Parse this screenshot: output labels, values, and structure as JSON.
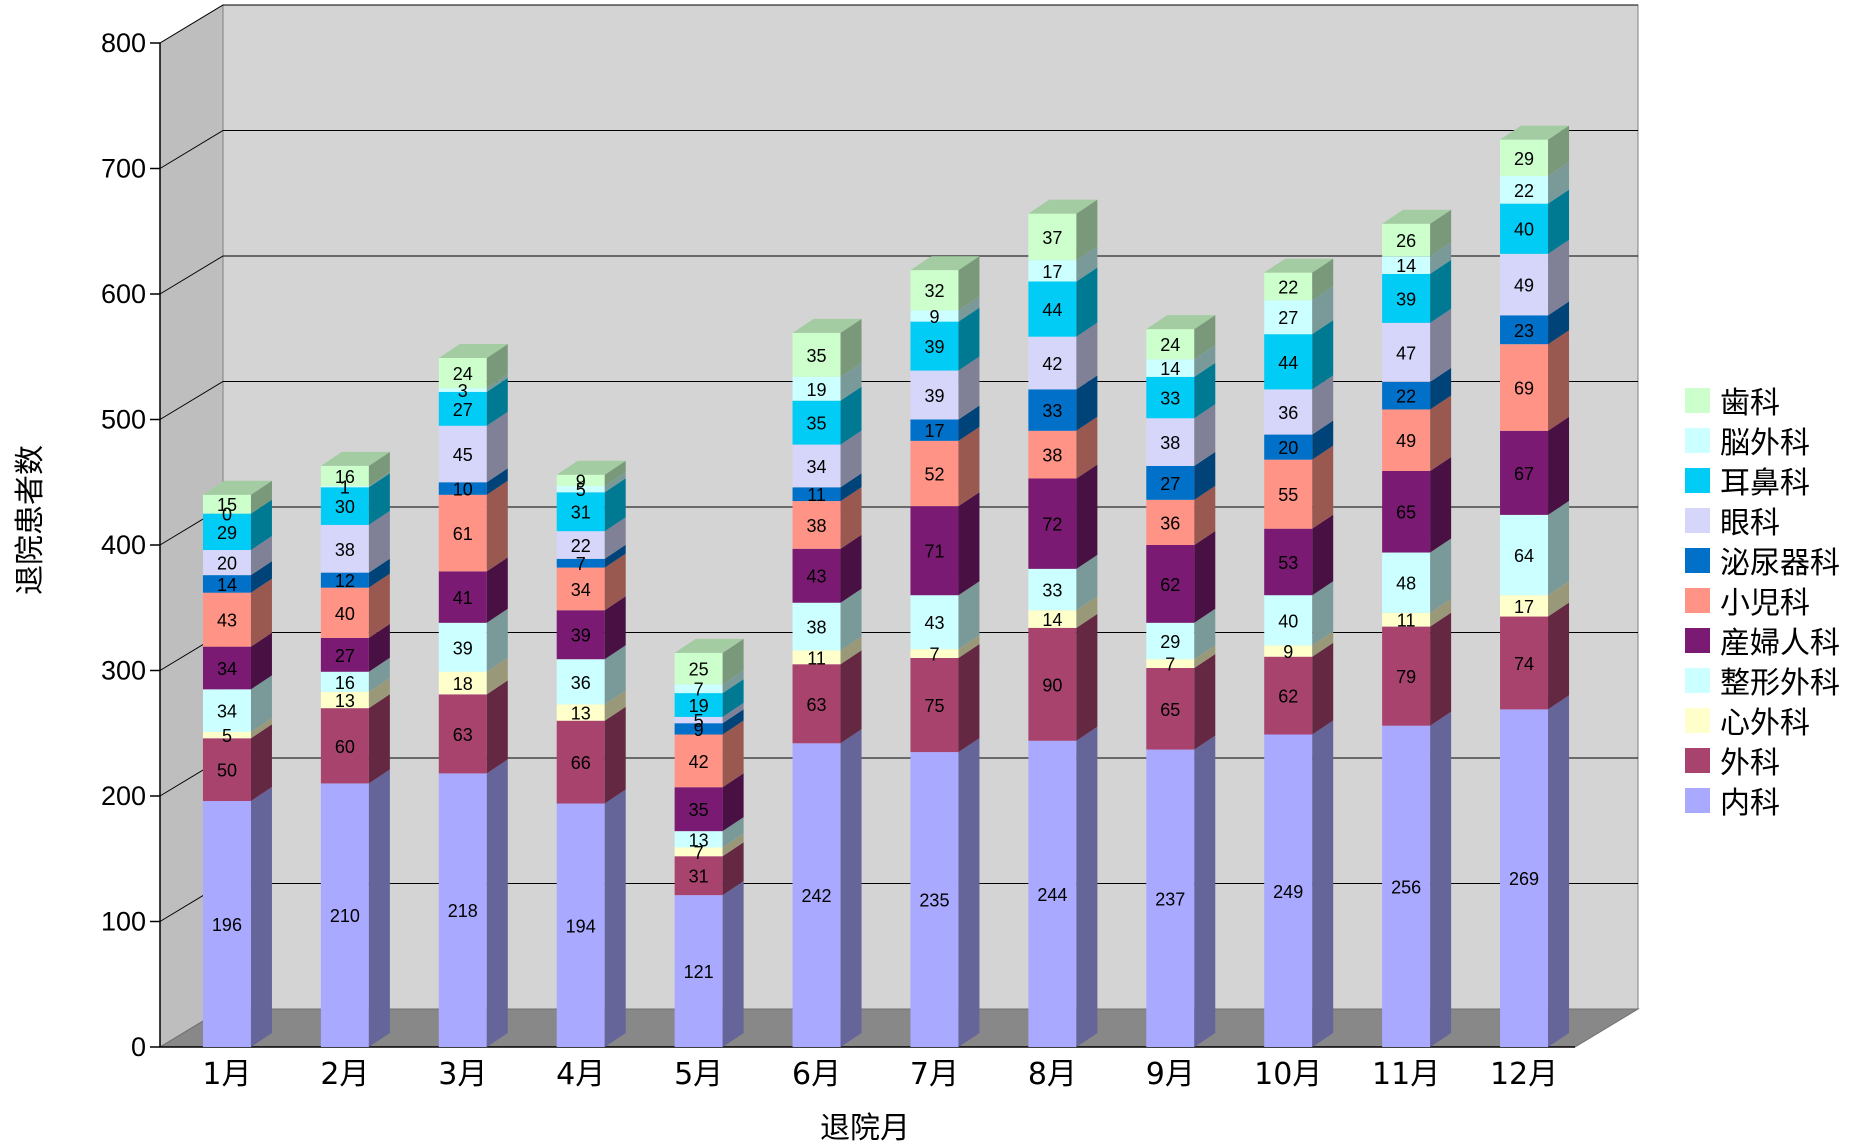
{
  "chart_data": {
    "type": "bar",
    "stacked": true,
    "three_d": true,
    "xlabel": "退院月",
    "ylabel": "退院患者数",
    "ylim": [
      0,
      800
    ],
    "yticks": [
      0,
      100,
      200,
      300,
      400,
      500,
      600,
      700,
      800
    ],
    "grid": true,
    "legend_position": "right",
    "categories": [
      "1月",
      "2月",
      "3月",
      "4月",
      "5月",
      "6月",
      "7月",
      "8月",
      "9月",
      "10月",
      "11月",
      "12月"
    ],
    "series": [
      {
        "name": "内科",
        "color": "#A9A9FF",
        "values": [
          196,
          210,
          218,
          194,
          121,
          242,
          235,
          244,
          237,
          249,
          256,
          269
        ]
      },
      {
        "name": "外科",
        "color": "#A8436E",
        "values": [
          50,
          60,
          63,
          66,
          31,
          63,
          75,
          90,
          65,
          62,
          79,
          74
        ]
      },
      {
        "name": "心外科",
        "color": "#FFFFCC",
        "values": [
          5,
          13,
          18,
          13,
          7,
          11,
          7,
          14,
          7,
          9,
          11,
          17
        ]
      },
      {
        "name": "整形外科",
        "color": "#CCFFFF",
        "values": [
          34,
          16,
          39,
          36,
          13,
          38,
          43,
          33,
          29,
          40,
          48,
          64
        ]
      },
      {
        "name": "産婦人科",
        "color": "#7A1A72",
        "values": [
          34,
          27,
          41,
          39,
          35,
          43,
          71,
          72,
          62,
          53,
          65,
          67
        ]
      },
      {
        "name": "小児科",
        "color": "#FF9385",
        "values": [
          43,
          40,
          61,
          34,
          42,
          38,
          52,
          38,
          36,
          55,
          49,
          69
        ]
      },
      {
        "name": "泌尿器科",
        "color": "#0070C8",
        "values": [
          14,
          12,
          10,
          7,
          9,
          11,
          17,
          33,
          27,
          20,
          22,
          23
        ]
      },
      {
        "name": "眼科",
        "color": "#D6D6FA",
        "values": [
          20,
          38,
          45,
          22,
          5,
          34,
          39,
          42,
          38,
          36,
          47,
          49
        ]
      },
      {
        "name": "耳鼻科",
        "color": "#00CCF5",
        "values": [
          29,
          30,
          27,
          31,
          19,
          35,
          39,
          44,
          33,
          44,
          39,
          40
        ]
      },
      {
        "name": "脳外科",
        "color": "#CCFFFF",
        "values": [
          0,
          1,
          3,
          5,
          7,
          19,
          9,
          17,
          14,
          27,
          14,
          22
        ]
      },
      {
        "name": "歯科",
        "color": "#CCFFCC",
        "values": [
          15,
          16,
          24,
          9,
          25,
          35,
          32,
          37,
          24,
          22,
          26,
          29
        ]
      }
    ]
  },
  "colors": {
    "plot_back": "#D4D4D4",
    "plot_side": "#BEBEBE",
    "floor": "#888888",
    "grid": "#000000"
  }
}
